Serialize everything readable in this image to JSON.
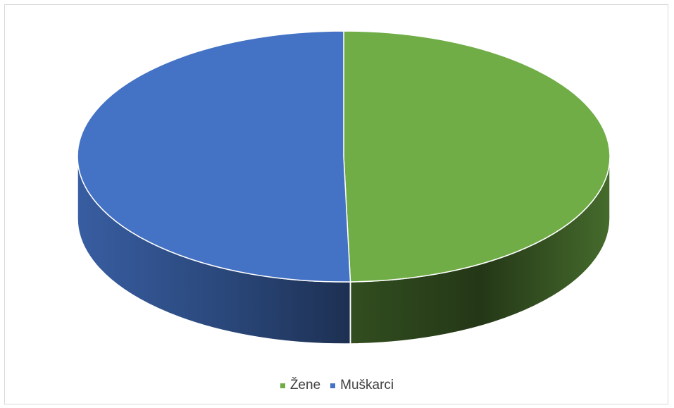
{
  "chart_data": {
    "type": "pie",
    "style": "3d",
    "title": "",
    "legend_position": "bottom",
    "slices": [
      {
        "label": "Žene",
        "value": 49.6,
        "color": "#70AD47"
      },
      {
        "label": "Muškarci",
        "value": 50.4,
        "color": "#4472C4"
      }
    ]
  }
}
